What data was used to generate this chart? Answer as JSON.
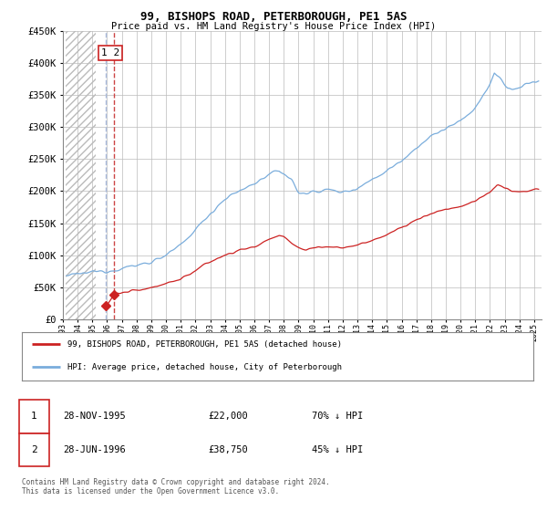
{
  "title": "99, BISHOPS ROAD, PETERBOROUGH, PE1 5AS",
  "subtitle": "Price paid vs. HM Land Registry's House Price Index (HPI)",
  "hpi_color": "#7aaddc",
  "price_color": "#cc2222",
  "marker_color": "#cc2222",
  "background_color": "#ffffff",
  "hatch_color": "#cccccc",
  "grid_color": "#bbbbbb",
  "ylim": [
    0,
    450000
  ],
  "yticks": [
    0,
    50000,
    100000,
    150000,
    200000,
    250000,
    300000,
    350000,
    400000,
    450000
  ],
  "xlim_start": 1993.2,
  "xlim_end": 2025.5,
  "hatch_end": 1995.25,
  "transactions": [
    {
      "date_label": "28-NOV-1995",
      "year_float": 1995.91,
      "price": 22000,
      "label": "1",
      "pct": "70% ↓ HPI"
    },
    {
      "date_label": "28-JUN-1996",
      "year_float": 1996.49,
      "price": 38750,
      "label": "2",
      "pct": "45% ↓ HPI"
    }
  ],
  "vline1_color": "#aabbdd",
  "vline2_color": "#cc4444",
  "legend_entry1": "99, BISHOPS ROAD, PETERBOROUGH, PE1 5AS (detached house)",
  "legend_entry2": "HPI: Average price, detached house, City of Peterborough",
  "footer": "Contains HM Land Registry data © Crown copyright and database right 2024.\nThis data is licensed under the Open Government Licence v3.0."
}
